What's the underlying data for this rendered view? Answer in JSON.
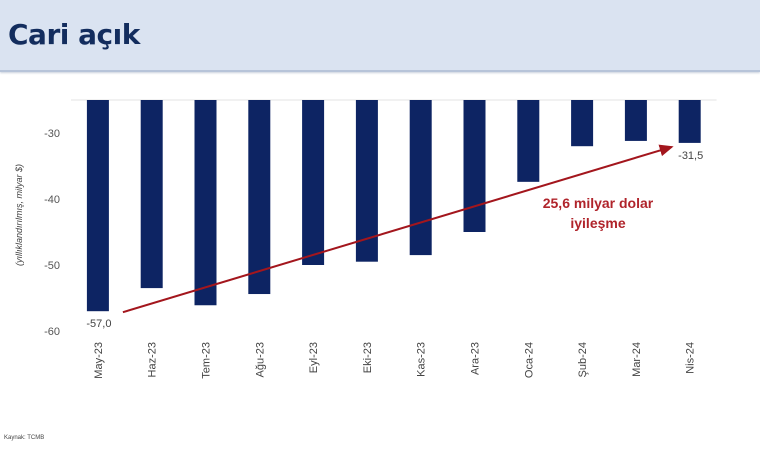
{
  "header": {
    "title": "Cari açık"
  },
  "source": "Kaynak: TCMB",
  "colors": {
    "bar": "#0d2463",
    "arrow": "#a3161d",
    "annotation": "#b0242b",
    "header_bg": "#dae3f1"
  },
  "chart_data": {
    "type": "bar",
    "title": "Cari açık",
    "ylabel": "(yıllıklandırılmış, milyar $)",
    "xlabel": "",
    "categories": [
      "May-23",
      "Haz-23",
      "Tem-23",
      "Ağu-23",
      "Eyl-23",
      "Eki-23",
      "Kas-23",
      "Ara-23",
      "Oca-24",
      "Şub-24",
      "Mar-24",
      "Nis-24"
    ],
    "values": [
      -57.0,
      -53.5,
      -56.1,
      -54.4,
      -50.0,
      -49.5,
      -48.5,
      -45.0,
      -37.4,
      -32.0,
      -31.2,
      -31.5
    ],
    "ylim": [
      -60,
      -25
    ],
    "yticks": [
      "-30",
      "-40",
      "-50",
      "-60"
    ],
    "ytick_values": [
      -30,
      -40,
      -50,
      -60
    ],
    "data_labels": [
      {
        "category": "May-23",
        "text": "-57,0"
      },
      {
        "category": "Nis-24",
        "text": "-31,5"
      }
    ],
    "annotation": {
      "line1": "25,6 milyar dolar",
      "line2": "iyileşme",
      "from": "May-23",
      "to": "Nis-24"
    },
    "grid": false
  }
}
